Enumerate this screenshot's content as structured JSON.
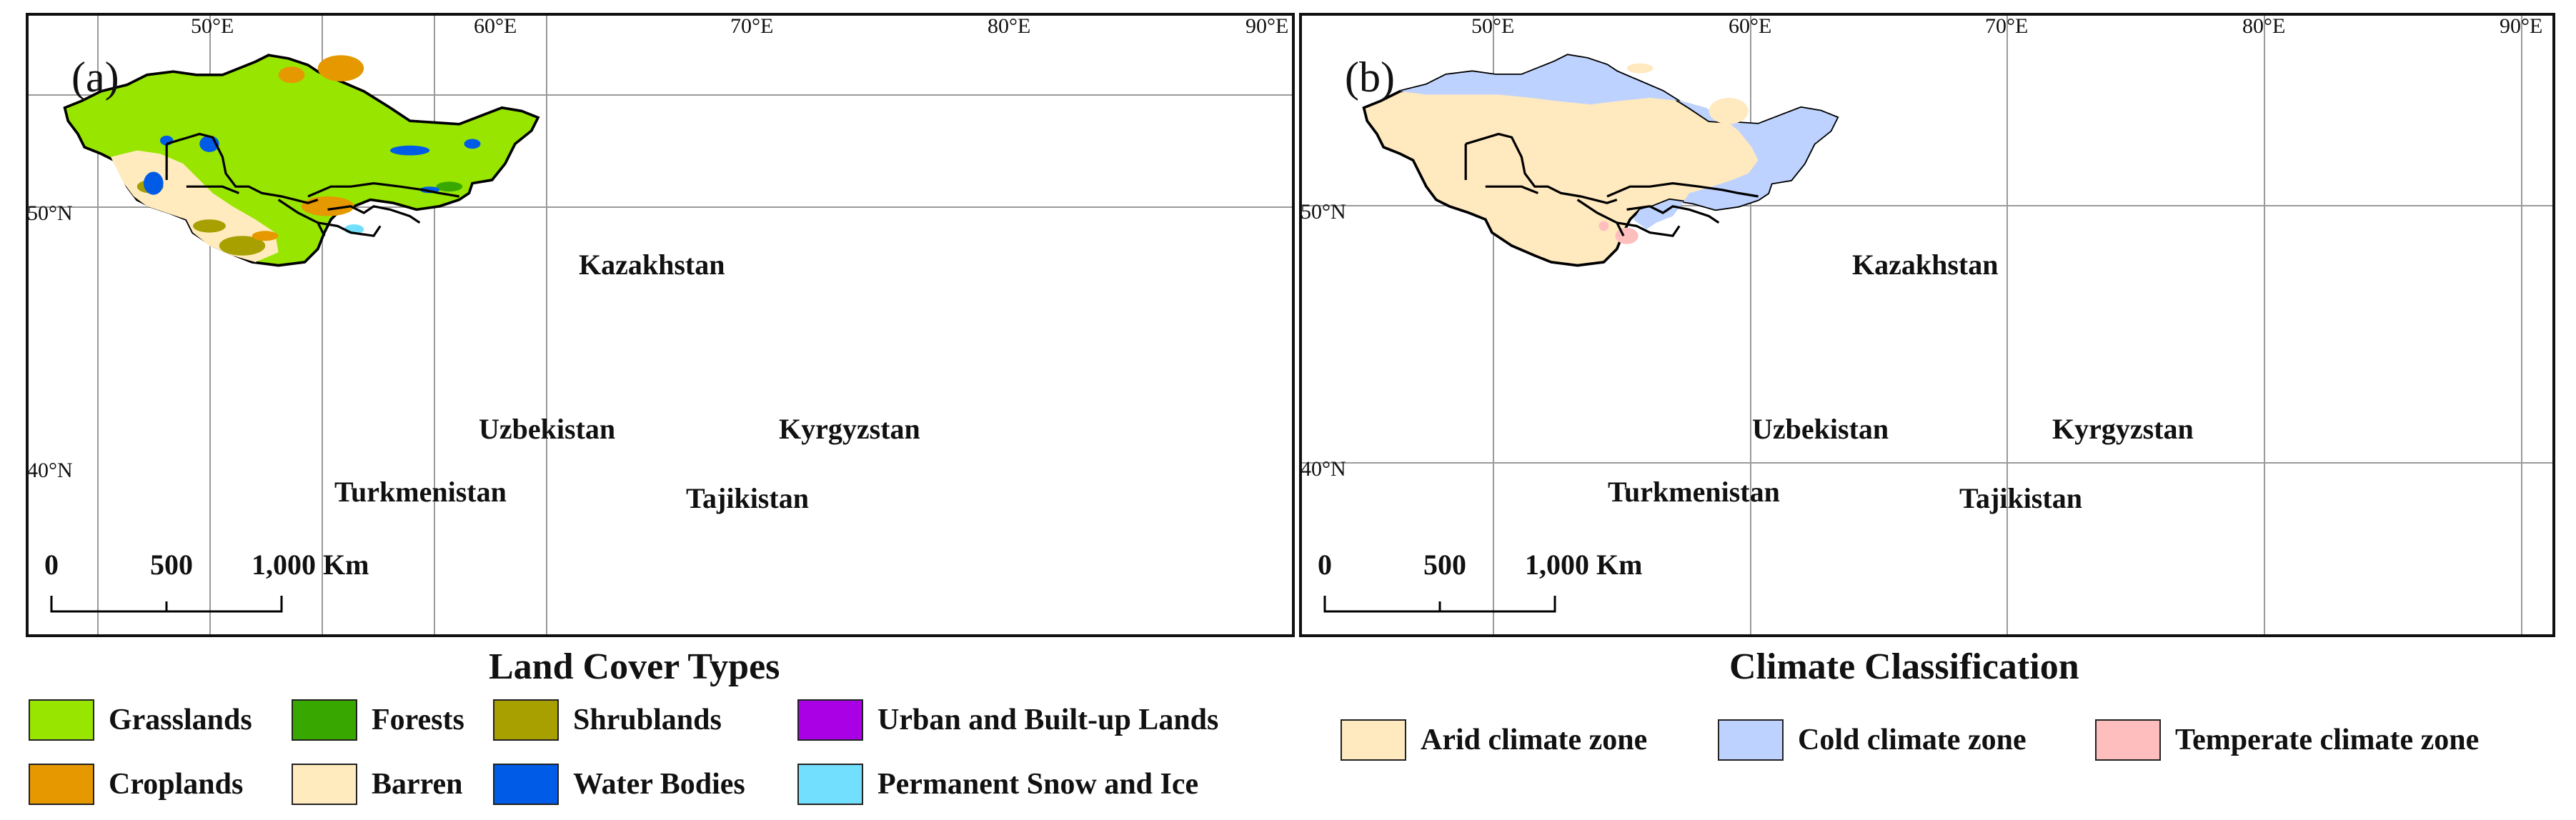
{
  "panels": {
    "a": {
      "letter": "(a)"
    },
    "b": {
      "letter": "(b)"
    }
  },
  "axes": {
    "lon_labels": [
      "50°E",
      "60°E",
      "70°E",
      "80°E",
      "90°E"
    ],
    "lat_labels": [
      "50°N",
      "40°N"
    ]
  },
  "countries": [
    "Kazakhstan",
    "Uzbekistan",
    "Kyrgyzstan",
    "Turkmenistan",
    "Tajikistan"
  ],
  "scale_bar": {
    "zero": "0",
    "mid": "500",
    "end": "1,000 Km"
  },
  "land_cover_legend": {
    "title": "Land Cover Types",
    "items": [
      {
        "label": "Grasslands",
        "color": "#98e600"
      },
      {
        "label": "Forests",
        "color": "#38a800"
      },
      {
        "label": "Shrublands",
        "color": "#a8a000"
      },
      {
        "label": "Urban and Built-up Lands",
        "color": "#a900e6"
      },
      {
        "label": "Croplands",
        "color": "#e69800"
      },
      {
        "label": "Barren",
        "color": "#ffebbe"
      },
      {
        "label": "Water Bodies",
        "color": "#005ce6"
      },
      {
        "label": "Permanent Snow and Ice",
        "color": "#73dfff"
      }
    ]
  },
  "climate_legend": {
    "title": "Climate Classification",
    "items": [
      {
        "label": "Arid climate zone",
        "color": "#ffe9bf"
      },
      {
        "label": "Cold climate zone",
        "color": "#bed2ff"
      },
      {
        "label": "Temperate climate zone",
        "color": "#ffbebe"
      }
    ]
  }
}
